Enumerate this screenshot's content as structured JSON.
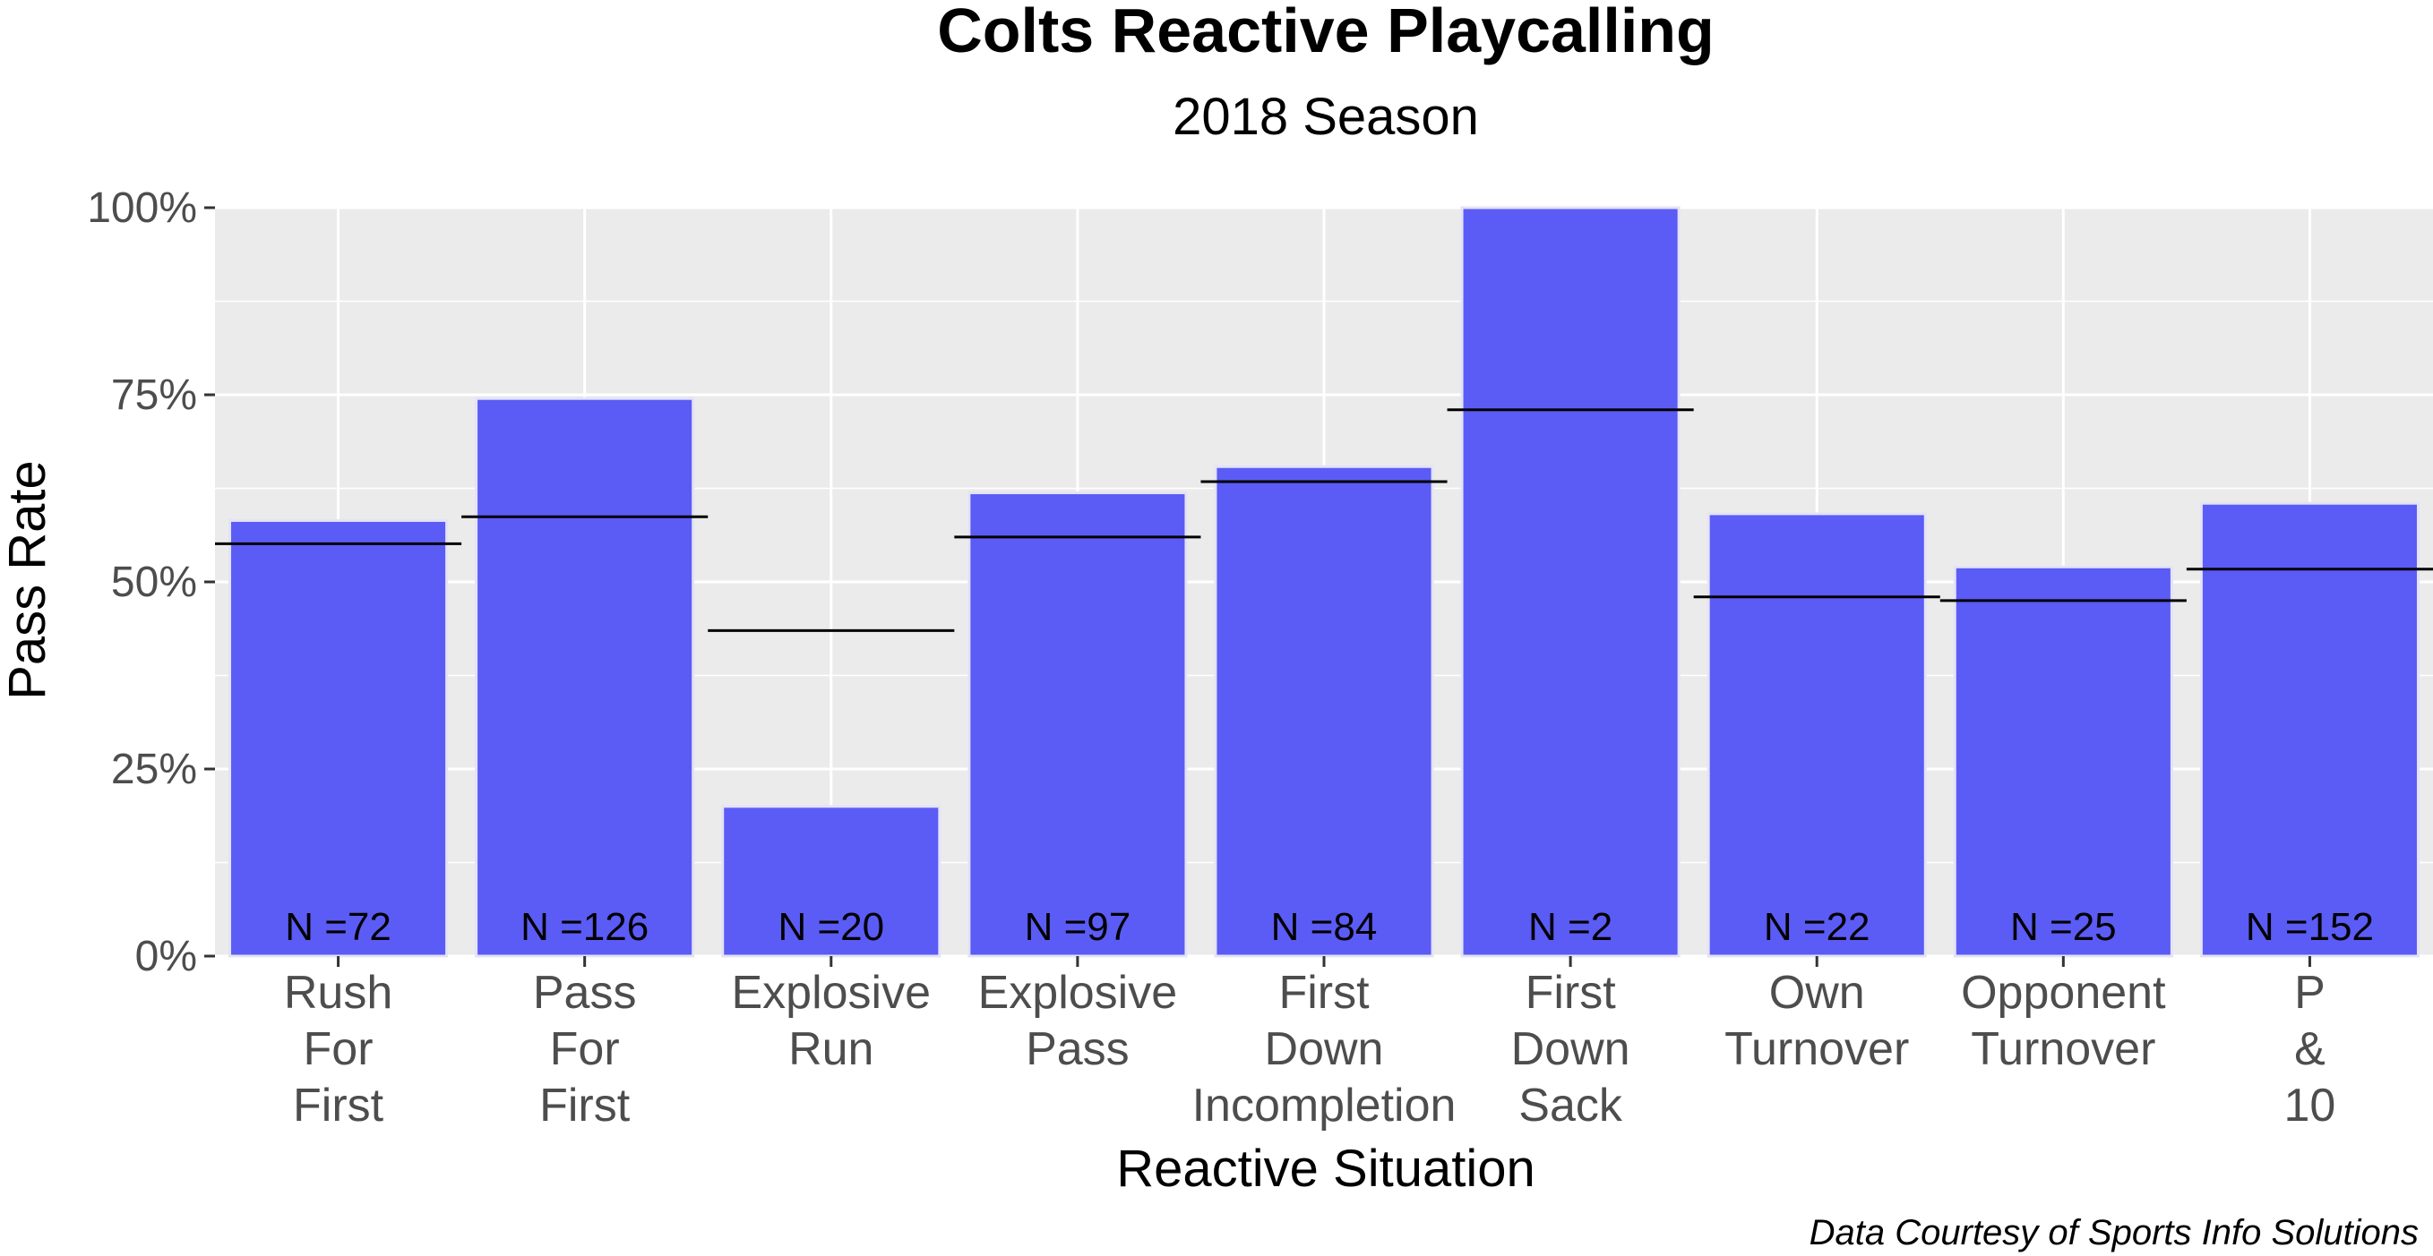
{
  "chart_data": {
    "type": "bar",
    "title": "Colts Reactive Playcalling",
    "subtitle": "2018 Season",
    "xlabel": "Reactive Situation",
    "ylabel": "Pass Rate",
    "caption": "Data Courtesy of Sports Info Solutions",
    "ylim": [
      0,
      1
    ],
    "yticks": [
      0,
      0.25,
      0.5,
      0.75,
      1.0
    ],
    "ytick_labels": [
      "0%",
      "25%",
      "50%",
      "75%",
      "100%"
    ],
    "grid": true,
    "legend": "none",
    "bar_color": "#5B5BF5",
    "reference_line_color": "#000000",
    "categories": [
      [
        "Rush",
        "For",
        "First"
      ],
      [
        "Pass",
        "For",
        "First"
      ],
      [
        "Explosive",
        "Run"
      ],
      [
        "Explosive",
        "Pass"
      ],
      [
        "First",
        "Down",
        "Incompletion"
      ],
      [
        "First",
        "Down",
        "Sack"
      ],
      [
        "Own",
        "Turnover"
      ],
      [
        "Opponent",
        "Turnover"
      ],
      [
        "P",
        "&",
        "10"
      ]
    ],
    "values": [
      0.582,
      0.745,
      0.2,
      0.619,
      0.654,
      1.0,
      0.591,
      0.52,
      0.605
    ],
    "reference_values": [
      0.551,
      0.587,
      0.435,
      0.56,
      0.634,
      0.73,
      0.48,
      0.475,
      0.517
    ],
    "n_labels": [
      "N =72",
      "N =126",
      "N =20",
      "N =97",
      "N =84",
      "N =2",
      "N =22",
      "N =25",
      "N =152"
    ]
  }
}
